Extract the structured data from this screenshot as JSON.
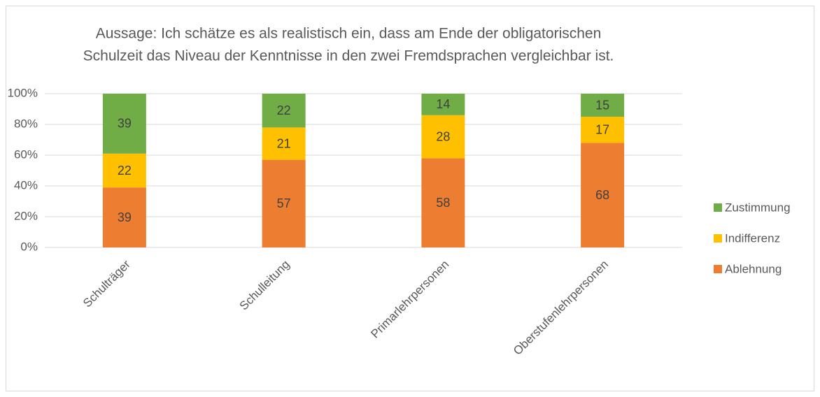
{
  "chart_data": {
    "type": "stacked_bar",
    "title": [
      "Aussage: Ich schätze es als realistisch ein, dass am Ende der obligatorischen",
      "Schulzeit das Niveau der Kenntnisse in den zwei Fremdsprachen vergleichbar ist."
    ],
    "categories": [
      "Schulträger",
      "Schulleitung",
      "Primarlehrpersonen",
      "Oberstufenlehrpersonen"
    ],
    "series": [
      {
        "name": "Ablehnung",
        "color": "#ed7d31",
        "values": [
          39,
          57,
          58,
          68
        ]
      },
      {
        "name": "Indifferenz",
        "color": "#ffc000",
        "values": [
          22,
          21,
          28,
          17
        ]
      },
      {
        "name": "Zustimmung",
        "color": "#70ad47",
        "values": [
          39,
          22,
          14,
          15
        ]
      }
    ],
    "ylim": [
      0,
      100
    ],
    "yticks": [
      {
        "value": 0,
        "label": "0%"
      },
      {
        "value": 20,
        "label": "20%"
      },
      {
        "value": 40,
        "label": "40%"
      },
      {
        "value": 60,
        "label": "60%"
      },
      {
        "value": 80,
        "label": "80%"
      },
      {
        "value": 100,
        "label": "100%"
      }
    ],
    "grid": true,
    "legend": "right"
  }
}
